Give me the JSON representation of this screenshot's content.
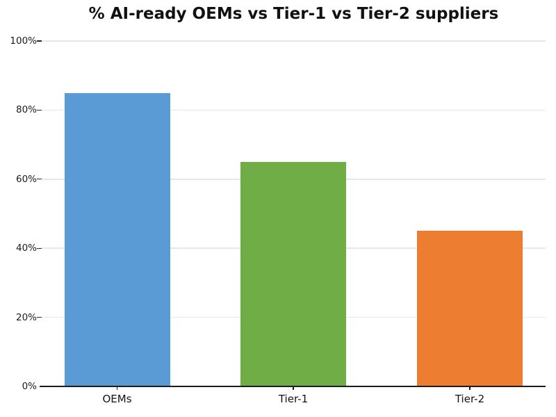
{
  "chart_data": {
    "type": "bar",
    "title": "% AI-ready OEMs vs Tier-1 vs Tier-2 suppliers",
    "categories": [
      "OEMs",
      "Tier-1",
      "Tier-2"
    ],
    "values": [
      85,
      65,
      45
    ],
    "value_unit": "%",
    "bar_colors": [
      "#5b9bd5",
      "#70ad47",
      "#ed7d31"
    ],
    "xlabel": "",
    "ylabel": "",
    "ylim": [
      0,
      100
    ],
    "yticks": [
      0,
      20,
      40,
      60,
      80,
      100
    ],
    "ytick_labels": [
      "0%",
      "20%",
      "40%",
      "60%",
      "80%",
      "100%"
    ],
    "grid": "horizontal",
    "legend_position": "none"
  },
  "colors": {
    "background": "#ffffff",
    "gridline": "#e7e7e7",
    "axis": "#1a1a1a",
    "tick": "#262626",
    "text": "#111111"
  }
}
